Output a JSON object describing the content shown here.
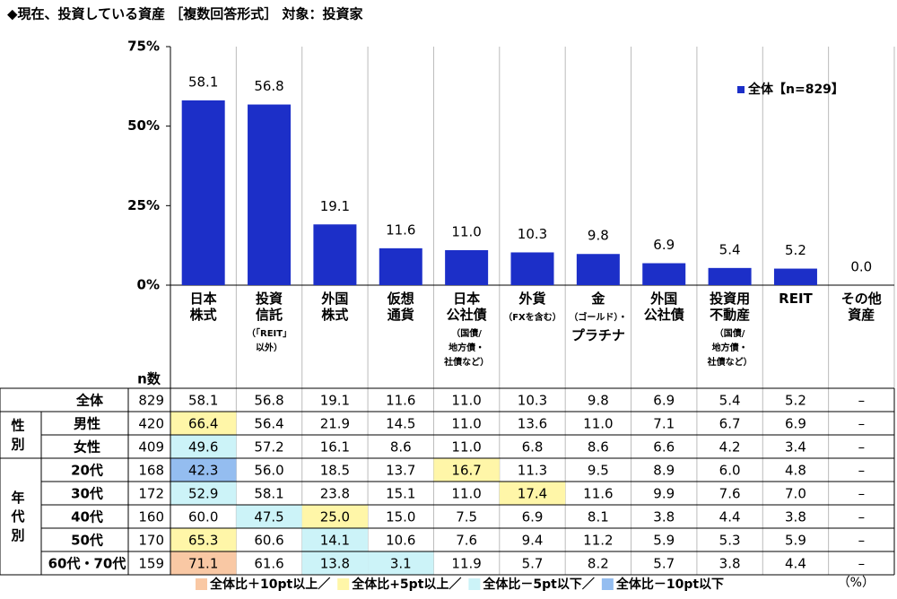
{
  "chart_data": {
    "type": "bar",
    "title": "◆現在、投資している資産 ［複数回答形式］ 対象：投資家",
    "categories": [
      "日本\n株式",
      "投資\n信託",
      "外国\n株式",
      "仮想\n通貨",
      "日本\n公社債",
      "外貨",
      "金",
      "外国\n公社債",
      "投資用\n不動産",
      "REIT",
      "その他\n資産"
    ],
    "category_notes": [
      null,
      "（「REIT」\n以外）",
      null,
      null,
      "（国債/\n地方債・\n社債など）",
      "（FXを含む）",
      "（ゴールド）・",
      null,
      "（国債/\n地方債・\n社債など）",
      null,
      null
    ],
    "category_tails": [
      null,
      null,
      null,
      null,
      null,
      null,
      "プラチナ",
      null,
      null,
      null,
      null
    ],
    "series": [
      {
        "name": "全体【n=829】",
        "color": "#1c2fc8",
        "values": [
          58.1,
          56.8,
          19.1,
          11.6,
          11.0,
          10.3,
          9.8,
          6.9,
          5.4,
          5.2,
          0.0
        ],
        "value_labels": [
          "58.1",
          "56.8",
          "19.1",
          "11.6",
          "11.0",
          "10.3",
          "9.8",
          "6.9",
          "5.4",
          "5.2",
          "0.0"
        ]
      }
    ],
    "ylim": [
      0,
      75
    ],
    "yticks": [
      {
        "value": 0,
        "label": "0%"
      },
      {
        "value": 25,
        "label": "25%"
      },
      {
        "value": 50,
        "label": "50%"
      },
      {
        "value": 75,
        "label": "75%"
      }
    ],
    "grid": false,
    "legend": "upper-right"
  },
  "table": {
    "n_header": "n数",
    "total": {
      "label": "全体",
      "n": "829",
      "cells": [
        "58.1",
        "56.8",
        "19.1",
        "11.6",
        "11.0",
        "10.3",
        "9.8",
        "6.9",
        "5.4",
        "5.2",
        "–"
      ],
      "highlight": [
        null,
        null,
        null,
        null,
        null,
        null,
        null,
        null,
        null,
        null,
        null
      ]
    },
    "groups": [
      {
        "label": "性別",
        "rows": [
          {
            "label": "男性",
            "n": "420",
            "cells": [
              "66.4",
              "56.4",
              "21.9",
              "14.5",
              "11.0",
              "13.6",
              "11.0",
              "7.1",
              "6.7",
              "6.9",
              "–"
            ],
            "highlight": [
              "#fff6a8",
              null,
              null,
              null,
              null,
              null,
              null,
              null,
              null,
              null,
              null
            ]
          },
          {
            "label": "女性",
            "n": "409",
            "cells": [
              "49.6",
              "57.2",
              "16.1",
              "8.6",
              "11.0",
              "6.8",
              "8.6",
              "6.6",
              "4.2",
              "3.4",
              "–"
            ],
            "highlight": [
              "#ccf3f8",
              null,
              null,
              null,
              null,
              null,
              null,
              null,
              null,
              null,
              null
            ]
          }
        ]
      },
      {
        "label": "年代別",
        "rows": [
          {
            "label": "20代",
            "n": "168",
            "cells": [
              "42.3",
              "56.0",
              "18.5",
              "13.7",
              "16.7",
              "11.3",
              "9.5",
              "8.9",
              "6.0",
              "4.8",
              "–"
            ],
            "highlight": [
              "#94bdf0",
              null,
              null,
              null,
              "#fff6a8",
              null,
              null,
              null,
              null,
              null,
              null
            ]
          },
          {
            "label": "30代",
            "n": "172",
            "cells": [
              "52.9",
              "58.1",
              "23.8",
              "15.1",
              "11.0",
              "17.4",
              "11.6",
              "9.9",
              "7.6",
              "7.0",
              "–"
            ],
            "highlight": [
              "#ccf3f8",
              null,
              null,
              null,
              null,
              "#fff6a8",
              null,
              null,
              null,
              null,
              null
            ]
          },
          {
            "label": "40代",
            "n": "160",
            "cells": [
              "60.0",
              "47.5",
              "25.0",
              "15.0",
              "7.5",
              "6.9",
              "8.1",
              "3.8",
              "4.4",
              "3.8",
              "–"
            ],
            "highlight": [
              null,
              "#ccf3f8",
              "#fff6a8",
              null,
              null,
              null,
              null,
              null,
              null,
              null,
              null
            ]
          },
          {
            "label": "50代",
            "n": "170",
            "cells": [
              "65.3",
              "60.6",
              "14.1",
              "10.6",
              "7.6",
              "9.4",
              "11.2",
              "5.9",
              "5.3",
              "5.9",
              "–"
            ],
            "highlight": [
              "#fff6a8",
              null,
              "#ccf3f8",
              null,
              null,
              null,
              null,
              null,
              null,
              null,
              null
            ]
          },
          {
            "label": "60代・70代",
            "n": "159",
            "cells": [
              "71.1",
              "61.6",
              "13.8",
              "3.1",
              "11.9",
              "5.7",
              "8.2",
              "5.7",
              "3.8",
              "4.4",
              "–"
            ],
            "highlight": [
              "#f9c8a4",
              null,
              "#ccf3f8",
              "#ccf3f8",
              null,
              null,
              null,
              null,
              null,
              null,
              null
            ]
          }
        ]
      }
    ],
    "legend": [
      {
        "label": "全体比＋10pt以上／",
        "color": "#f9c8a4"
      },
      {
        "label": "全体比+5pt以上／",
        "color": "#fff6a8"
      },
      {
        "label": "全体比－5pt以下／",
        "color": "#ccf3f8"
      },
      {
        "label": "全体比－10pt以下",
        "color": "#94bdf0"
      }
    ],
    "unit": "（%）"
  }
}
